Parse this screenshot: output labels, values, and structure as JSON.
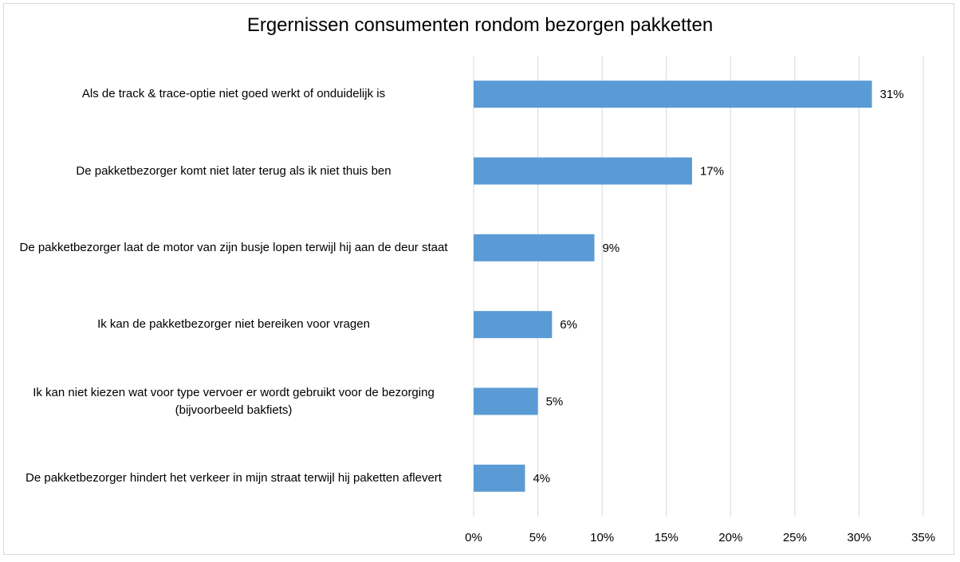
{
  "chart_data": {
    "type": "bar",
    "orientation": "horizontal",
    "title": "Ergernissen consumenten rondom bezorgen pakketten",
    "categories": [
      "Als de track & trace-optie niet goed werkt of onduidelijk is",
      "De pakketbezorger komt niet later terug als ik niet thuis ben",
      "De pakketbezorger laat de motor van zijn busje lopen terwijl hij aan de deur staat",
      "Ik kan de pakketbezorger niet bereiken voor vragen",
      "Ik kan niet kiezen wat voor type vervoer er wordt gebruikt voor de bezorging (bijvoorbeeld bakfiets)",
      "De pakketbezorger hindert het verkeer in mijn straat terwijl hij paketten aflevert"
    ],
    "values": [
      31,
      17,
      9.4,
      6.1,
      5,
      4
    ],
    "data_labels": [
      "31%",
      "17%",
      "9%",
      "6%",
      "5%",
      "4%"
    ],
    "xlim": [
      0,
      35
    ],
    "x_ticks": [
      "0%",
      "5%",
      "10%",
      "15%",
      "20%",
      "25%",
      "30%",
      "35%"
    ],
    "grid": true,
    "bar_color": "#5b9bd5",
    "grid_color": "#d9d9d9"
  }
}
